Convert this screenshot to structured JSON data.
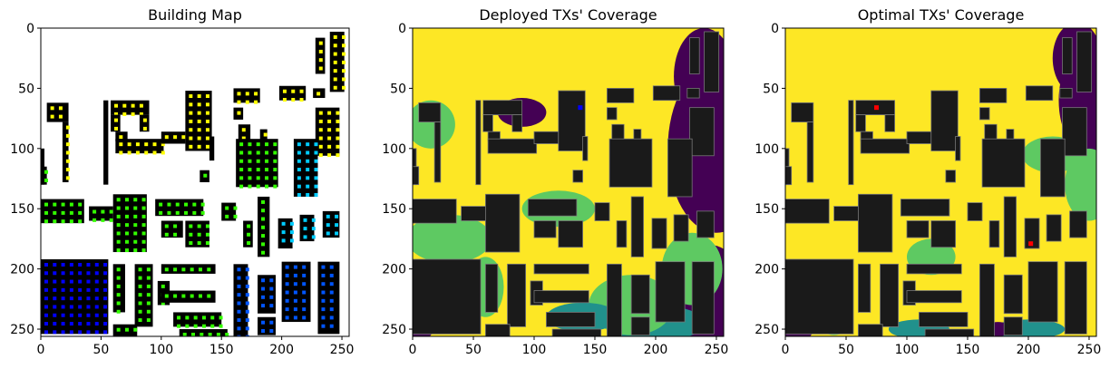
{
  "chart_data": [
    {
      "type": "heatmap",
      "title": "Building Map",
      "xlabel": "",
      "ylabel": "",
      "xlim": [
        0,
        256
      ],
      "ylim": [
        256,
        0
      ],
      "xticks": [
        0,
        50,
        100,
        150,
        200,
        250
      ],
      "yticks": [
        0,
        50,
        100,
        150,
        200,
        250
      ],
      "grid": false,
      "colors": {
        "background": "#ffffff",
        "building": "#000000",
        "markers": [
          "#ffff00",
          "#33ff00",
          "#00ccff",
          "#0055ff",
          "#0000ff"
        ]
      }
    },
    {
      "type": "heatmap",
      "title": "Deployed TXs' Coverage",
      "xlabel": "",
      "ylabel": "",
      "xlim": [
        0,
        256
      ],
      "ylim": [
        256,
        0
      ],
      "xticks": [
        0,
        50,
        100,
        150,
        200,
        250
      ],
      "yticks": [
        0,
        50,
        100,
        150,
        200,
        250
      ],
      "grid": false,
      "colors": {
        "covered": "#fde725",
        "partial": "#5ec962",
        "mid": "#21918c",
        "uncovered": "#440154",
        "building": "#1a1a1a",
        "tx": "#0000ff"
      },
      "tx_points": [
        {
          "x": 138,
          "y": 66
        }
      ]
    },
    {
      "type": "heatmap",
      "title": "Optimal TXs' Coverage",
      "xlabel": "",
      "ylabel": "",
      "xlim": [
        0,
        256
      ],
      "ylim": [
        256,
        0
      ],
      "xticks": [
        0,
        50,
        100,
        150,
        200,
        250
      ],
      "yticks": [
        0,
        50,
        100,
        150,
        200,
        250
      ],
      "grid": false,
      "colors": {
        "covered": "#fde725",
        "partial": "#5ec962",
        "mid": "#21918c",
        "uncovered": "#440154",
        "building": "#1a1a1a",
        "tx": "#ff0000"
      },
      "tx_points": [
        {
          "x": 75,
          "y": 66
        },
        {
          "x": 202,
          "y": 179
        }
      ]
    }
  ]
}
